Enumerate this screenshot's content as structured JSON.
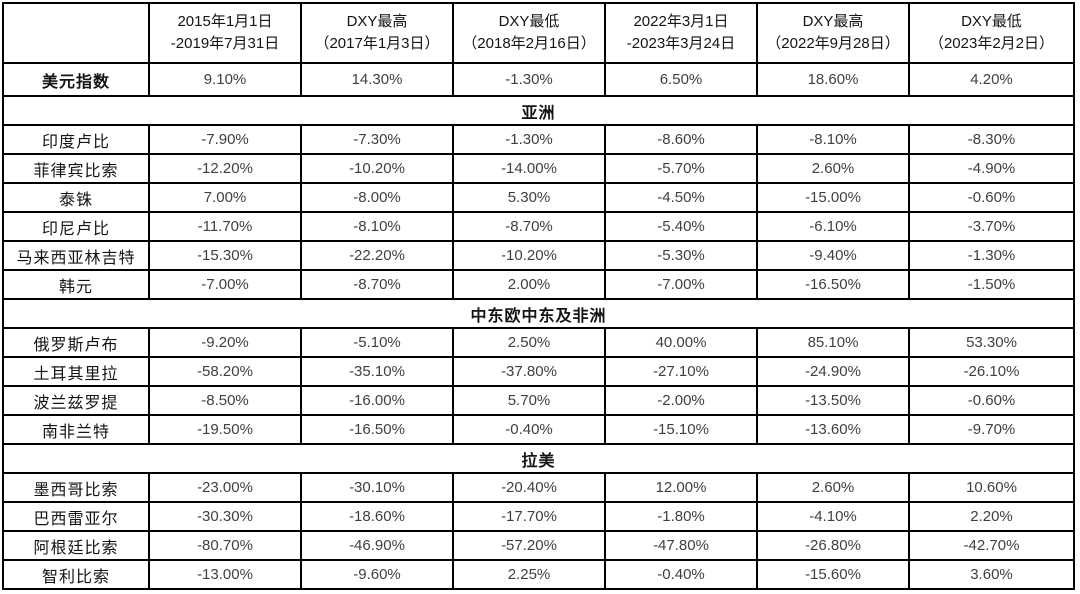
{
  "page": {
    "background_color": "#ffffff"
  },
  "table": {
    "name": "新兴市场货币与美元指数表现对比",
    "border_color": "#000000",
    "label_text_color": "#141414",
    "value_text_color": "#3f3f3f"
  },
  "chart_data": {
    "type": "table",
    "title": "",
    "columns": [
      {
        "line1": "",
        "line2": ""
      },
      {
        "line1": "2015年1月1日",
        "line2": "-2019年7月31日"
      },
      {
        "line1": "DXY最高",
        "line2": "（2017年1月3日）"
      },
      {
        "line1": "DXY最低",
        "line2": "（2018年2月16日）"
      },
      {
        "line1": "2022年3月1日",
        "line2": "-2023年3月24日"
      },
      {
        "line1": "DXY最高",
        "line2": "（2022年9月28日）"
      },
      {
        "line1": "DXY最低",
        "line2": "（2023年2月2日）"
      }
    ],
    "rows": [
      {
        "type": "data",
        "label": "美元指数",
        "bold": true,
        "values": [
          "9.10%",
          "14.30%",
          "-1.30%",
          "6.50%",
          "18.60%",
          "4.20%"
        ]
      },
      {
        "type": "section",
        "label": "亚洲"
      },
      {
        "type": "data",
        "label": "印度卢比",
        "values": [
          "-7.90%",
          "-7.30%",
          "-1.30%",
          "-8.60%",
          "-8.10%",
          "-8.30%"
        ]
      },
      {
        "type": "data",
        "label": "菲律宾比索",
        "values": [
          "-12.20%",
          "-10.20%",
          "-14.00%",
          "-5.70%",
          "2.60%",
          "-4.90%"
        ]
      },
      {
        "type": "data",
        "label": "泰铢",
        "values": [
          "7.00%",
          "-8.00%",
          "5.30%",
          "-4.50%",
          "-15.00%",
          "-0.60%"
        ]
      },
      {
        "type": "data",
        "label": "印尼卢比",
        "values": [
          "-11.70%",
          "-8.10%",
          "-8.70%",
          "-5.40%",
          "-6.10%",
          "-3.70%"
        ]
      },
      {
        "type": "data",
        "label": "马来西亚林吉特",
        "values": [
          "-15.30%",
          "-22.20%",
          "-10.20%",
          "-5.30%",
          "-9.40%",
          "-1.30%"
        ]
      },
      {
        "type": "data",
        "label": "韩元",
        "values": [
          "-7.00%",
          "-8.70%",
          "2.00%",
          "-7.00%",
          "-16.50%",
          "-1.50%"
        ]
      },
      {
        "type": "section",
        "label": "中东欧中东及非洲"
      },
      {
        "type": "data",
        "label": "俄罗斯卢布",
        "values": [
          "-9.20%",
          "-5.10%",
          "2.50%",
          "40.00%",
          "85.10%",
          "53.30%"
        ]
      },
      {
        "type": "data",
        "label": "土耳其里拉",
        "values": [
          "-58.20%",
          "-35.10%",
          "-37.80%",
          "-27.10%",
          "-24.90%",
          "-26.10%"
        ]
      },
      {
        "type": "data",
        "label": "波兰兹罗提",
        "values": [
          "-8.50%",
          "-16.00%",
          "5.70%",
          "-2.00%",
          "-13.50%",
          "-0.60%"
        ]
      },
      {
        "type": "data",
        "label": "南非兰特",
        "values": [
          "-19.50%",
          "-16.50%",
          "-0.40%",
          "-15.10%",
          "-13.60%",
          "-9.70%"
        ]
      },
      {
        "type": "section",
        "label": "拉美"
      },
      {
        "type": "data",
        "label": "墨西哥比索",
        "values": [
          "-23.00%",
          "-30.10%",
          "-20.40%",
          "12.00%",
          "2.60%",
          "10.60%"
        ]
      },
      {
        "type": "data",
        "label": "巴西雷亚尔",
        "values": [
          "-30.30%",
          "-18.60%",
          "-17.70%",
          "-1.80%",
          "-4.10%",
          "2.20%"
        ]
      },
      {
        "type": "data",
        "label": "阿根廷比索",
        "values": [
          "-80.70%",
          "-46.90%",
          "-57.20%",
          "-47.80%",
          "-26.80%",
          "-42.70%"
        ]
      },
      {
        "type": "data",
        "label": "智利比索",
        "values": [
          "-13.00%",
          "-9.60%",
          "2.25%",
          "-0.40%",
          "-15.60%",
          "3.60%"
        ]
      }
    ]
  }
}
